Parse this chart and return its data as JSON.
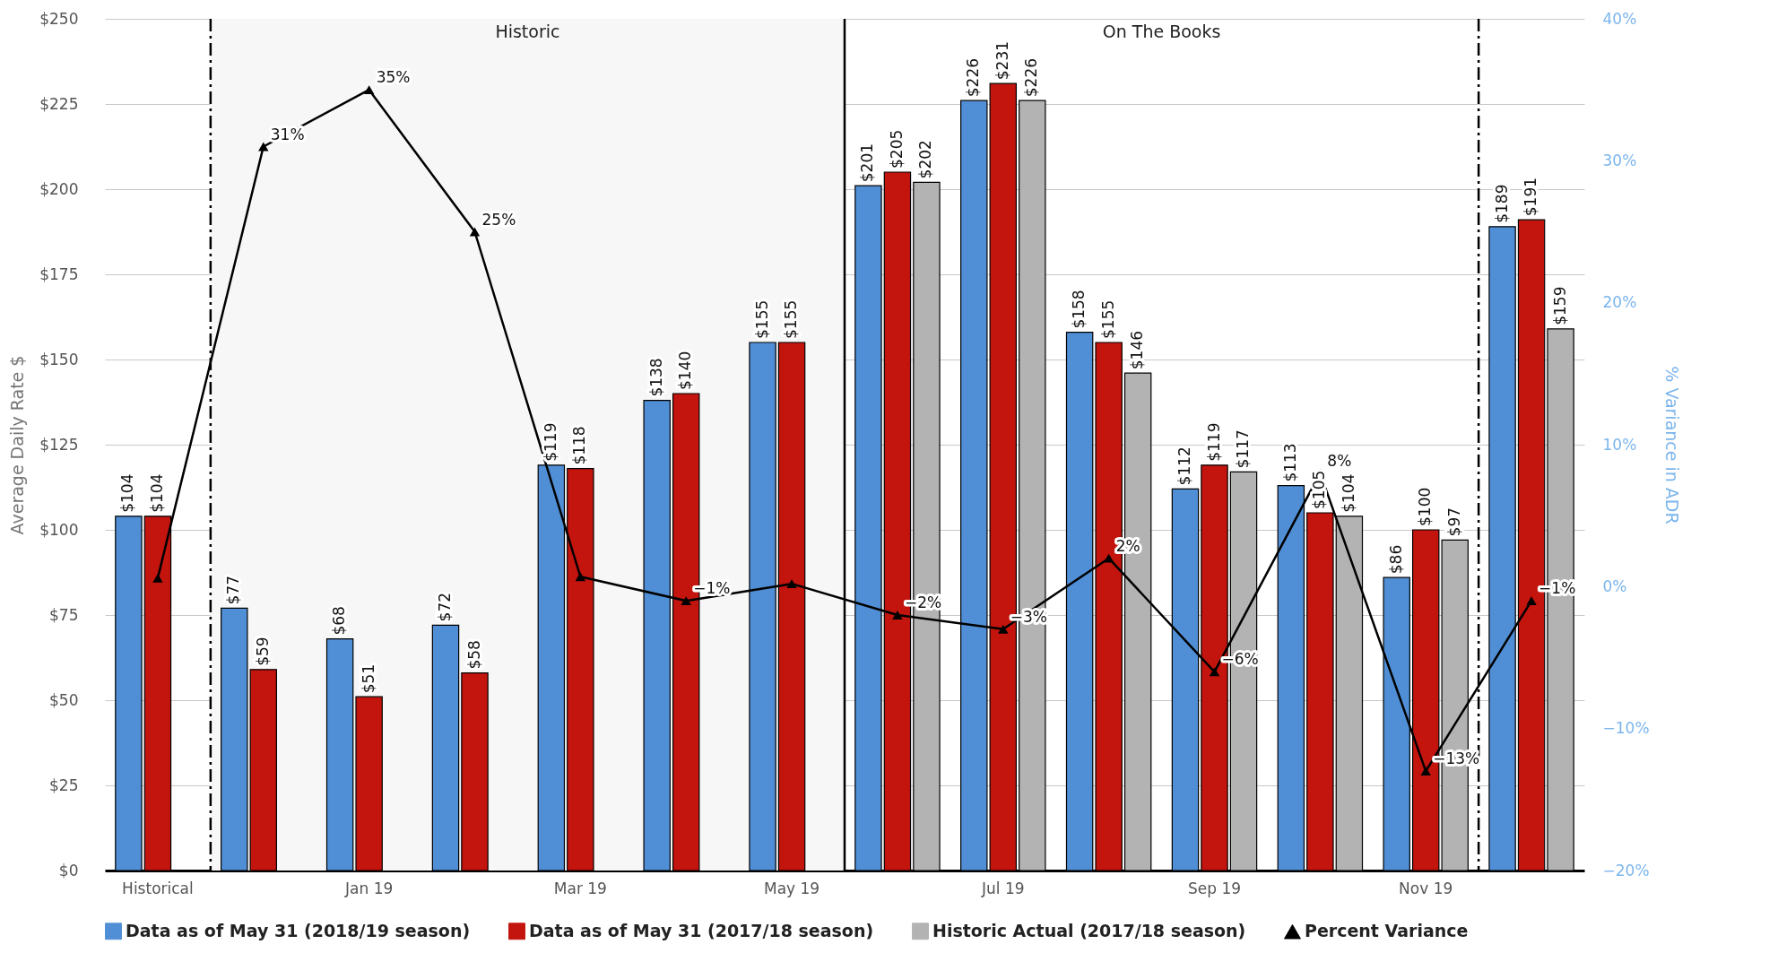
{
  "chart_data": {
    "type": "bar",
    "ylabel": "Average Daily Rate $",
    "y2label": "% Variance in ADR",
    "categories": [
      "Historical",
      null,
      "Jan 19",
      null,
      "Mar 19",
      null,
      "May 19",
      null,
      "Jul 19",
      null,
      "Sep 19",
      null,
      "Nov 19",
      null
    ],
    "series": [
      {
        "name": "Data as of May 31 (2018/19 season)",
        "color": "#508fd5",
        "values": [
          104,
          77,
          68,
          72,
          119,
          138,
          155,
          201,
          226,
          158,
          112,
          113,
          86,
          189
        ],
        "value_labels": [
          "$104",
          "$77",
          "$68",
          "$72",
          "$119",
          "$138",
          "$155",
          "$201",
          "$226",
          "$158",
          "$112",
          "$113",
          "$86",
          "$189"
        ]
      },
      {
        "name": "Data as of May 31 (2017/18 season)",
        "color": "#c3140e",
        "values": [
          104,
          59,
          51,
          58,
          118,
          140,
          155,
          205,
          231,
          155,
          119,
          105,
          100,
          191
        ],
        "value_labels": [
          "$104",
          "$59",
          "$51",
          "$58",
          "$118",
          "$140",
          "$155",
          "$205",
          "$231",
          "$155",
          "$119",
          "$105",
          "$100",
          "$191"
        ]
      },
      {
        "name": "Historic Actual (2017/18 season)",
        "color": "#b3b3b3",
        "values": [
          null,
          null,
          null,
          null,
          null,
          null,
          null,
          202,
          226,
          146,
          117,
          104,
          97,
          159
        ],
        "value_labels": [
          null,
          null,
          null,
          null,
          null,
          null,
          null,
          "$202",
          "$226",
          "$146",
          "$117",
          "$104",
          "$97",
          "$159"
        ]
      },
      {
        "name": "Percent Variance",
        "type": "line",
        "axis": "y2",
        "color": "#000000",
        "marker": "triangle",
        "values": [
          0.6,
          31,
          35,
          25,
          0.7,
          -1,
          0.2,
          -2,
          -3,
          2,
          -6,
          8,
          -13,
          -1
        ],
        "value_labels": [
          null,
          "31%",
          "35%",
          "25%",
          null,
          "−1%",
          null,
          "−2%",
          "−3%",
          "2%",
          "−6%",
          "8%",
          "−13%",
          "−1%"
        ]
      }
    ],
    "ylim": [
      0,
      250
    ],
    "yticks": [
      {
        "value": 0,
        "label": "$0"
      },
      {
        "value": 25,
        "label": "$25"
      },
      {
        "value": 50,
        "label": "$50"
      },
      {
        "value": 75,
        "label": "$75"
      },
      {
        "value": 100,
        "label": "$100"
      },
      {
        "value": 125,
        "label": "$125"
      },
      {
        "value": 150,
        "label": "$150"
      },
      {
        "value": 175,
        "label": "$175"
      },
      {
        "value": 200,
        "label": "$200"
      },
      {
        "value": 225,
        "label": "$225"
      },
      {
        "value": 250,
        "label": "$250"
      }
    ],
    "y2lim": [
      -20,
      40
    ],
    "y2ticks": [
      {
        "value": -20,
        "label": "−20%"
      },
      {
        "value": -10,
        "label": "−10%"
      },
      {
        "value": 0,
        "label": "0%"
      },
      {
        "value": 10,
        "label": "10%"
      },
      {
        "value": 20,
        "label": "20%"
      },
      {
        "value": 30,
        "label": "30%"
      },
      {
        "value": 40,
        "label": "40%"
      }
    ],
    "annotations": [
      "Historic",
      "On The Books"
    ],
    "grid": "y",
    "legend": "bottom"
  }
}
